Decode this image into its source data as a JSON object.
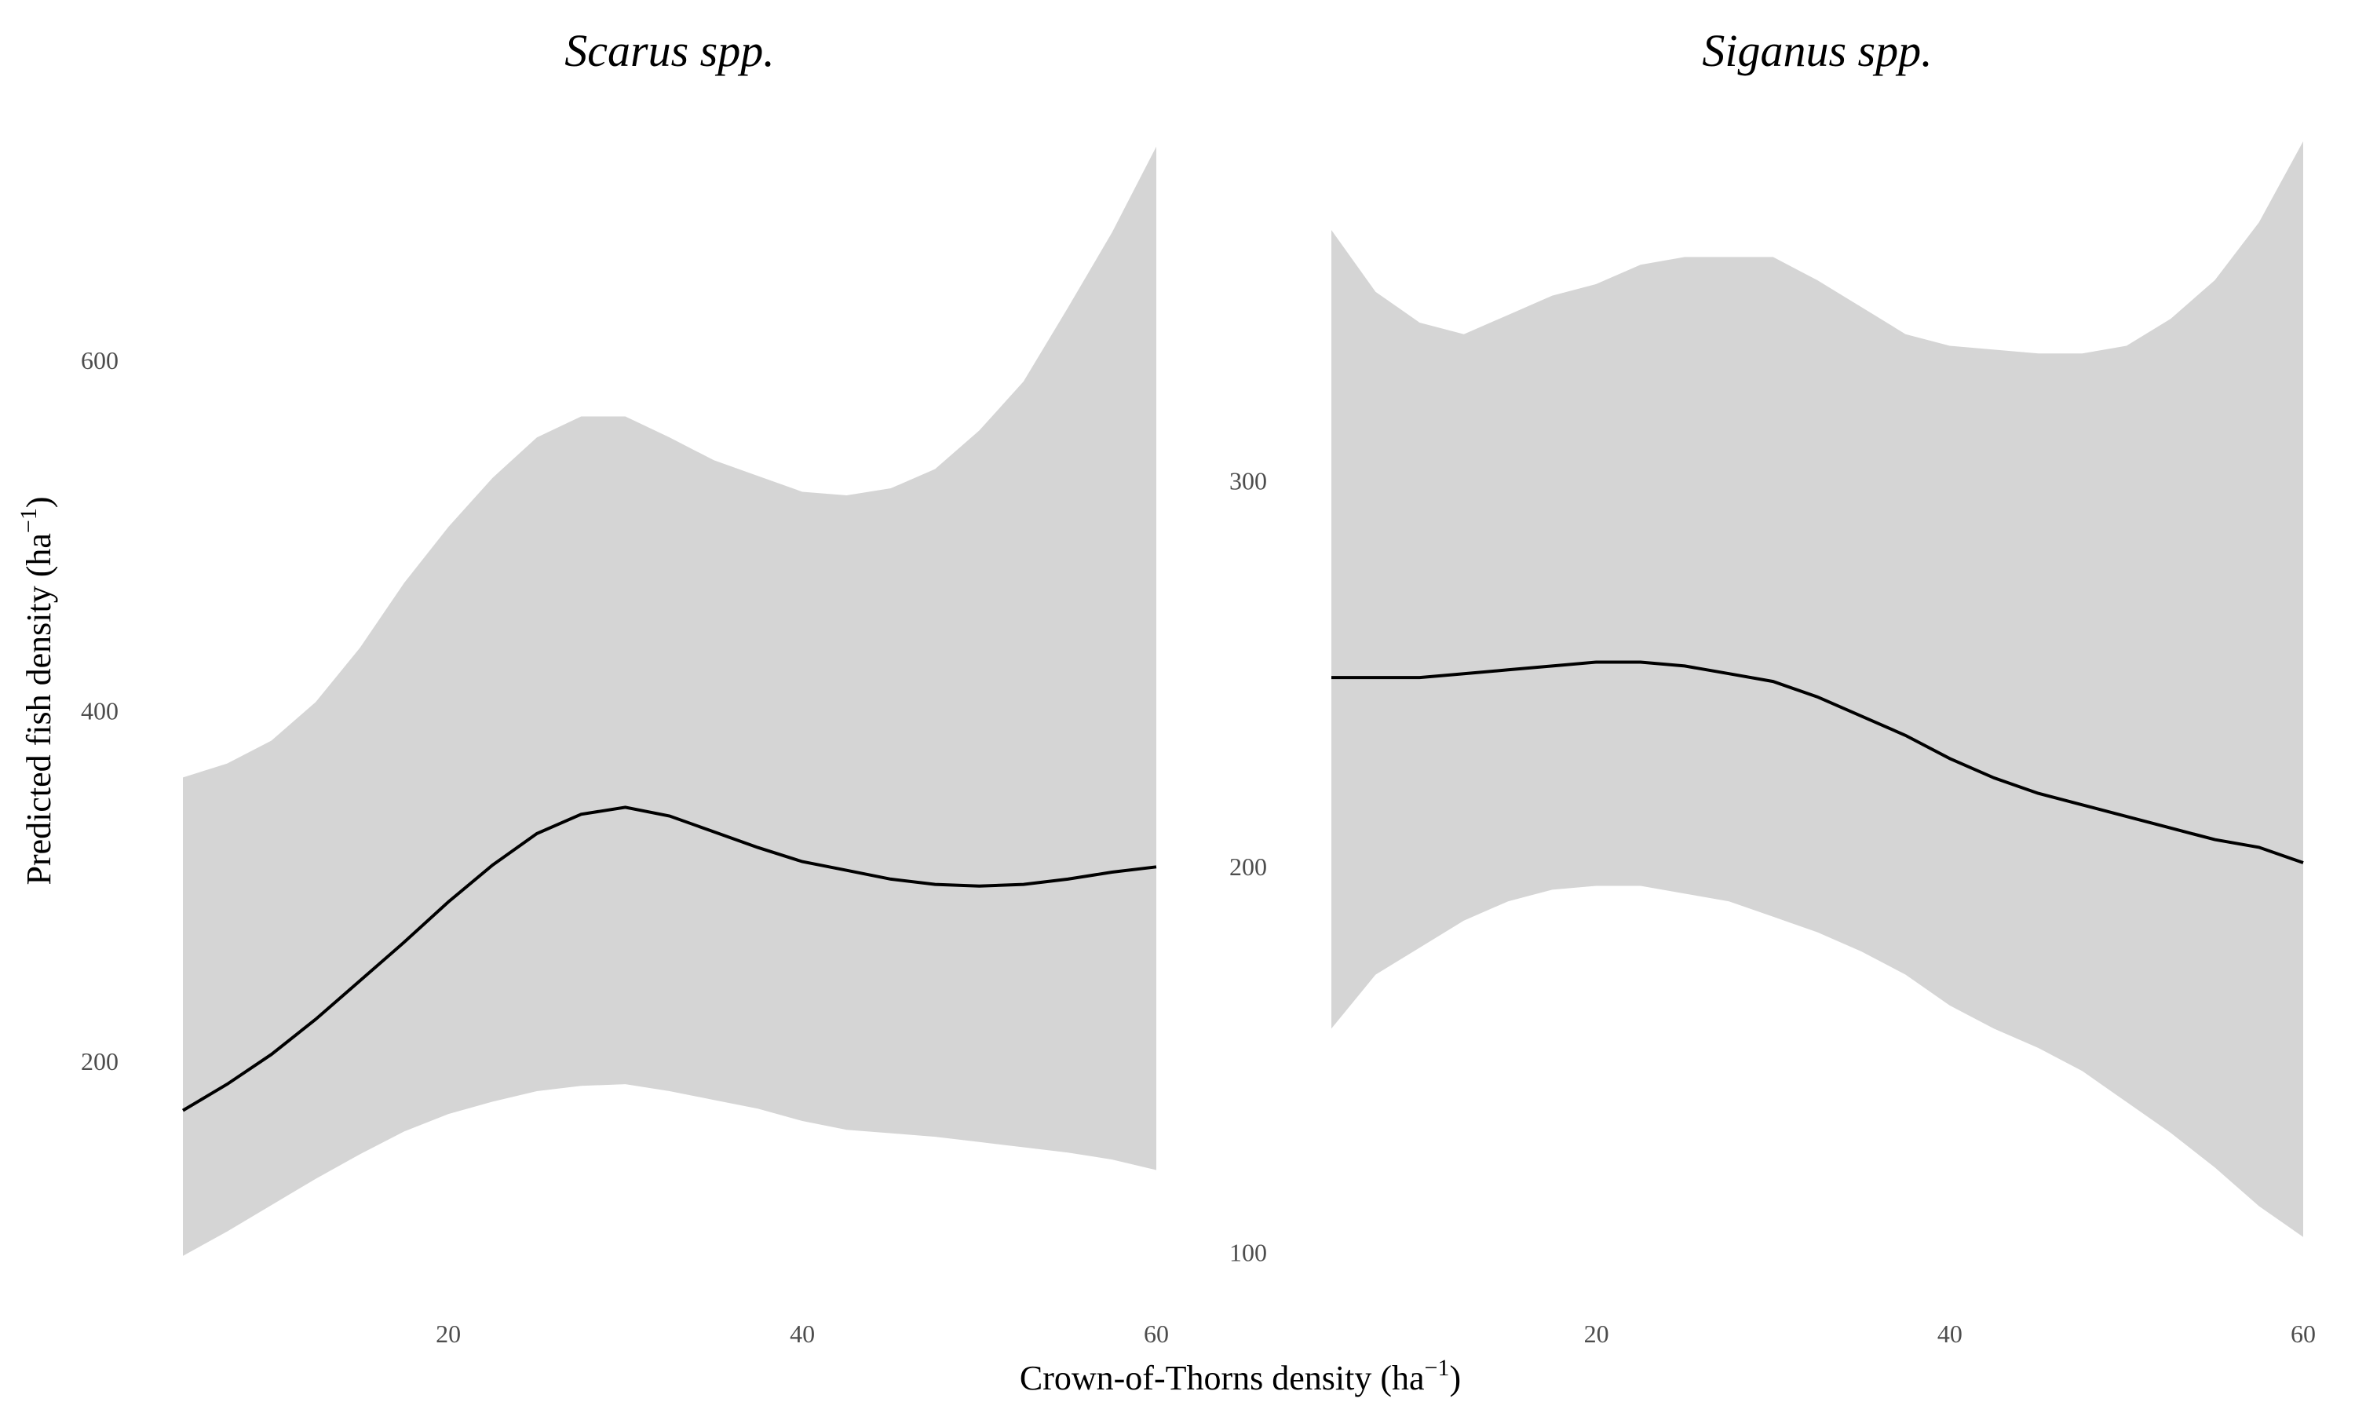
{
  "colors": {
    "band": "#d5d5d5",
    "line": "#000000",
    "tick_text": "#4d4d4d",
    "background": "#ffffff"
  },
  "axes": {
    "xlabel": "Crown-of-Thorns density (ha",
    "xlabel_sup": "−1",
    "xlabel_end": ")",
    "ylabel": "Predicted fish density (ha",
    "ylabel_sup": "−1",
    "ylabel_end": ")"
  },
  "chart_data": [
    {
      "type": "line",
      "title": "Scarus spp.",
      "xlabel": "Crown-of-Thorns density (ha−1)",
      "ylabel": "Predicted fish density (ha−1)",
      "xlim": [
        5,
        60
      ],
      "ylim": [
        80,
        725
      ],
      "x_ticks": [
        20,
        40,
        60
      ],
      "y_ticks": [
        200,
        400,
        600
      ],
      "grid": false,
      "series": [
        {
          "x": [
            5,
            7.5,
            10,
            12.5,
            15,
            17.5,
            20,
            22.5,
            25,
            27.5,
            30,
            32.5,
            35,
            37.5,
            40,
            42.5,
            45,
            47.5,
            50,
            52.5,
            55,
            57.5,
            60
          ],
          "y": [
            172,
            187,
            204,
            224,
            246,
            268,
            291,
            312,
            330,
            341,
            345,
            340,
            331,
            322,
            314,
            309,
            304,
            301,
            300,
            301,
            304,
            308,
            311
          ],
          "lower": [
            89,
            103,
            118,
            133,
            147,
            160,
            170,
            177,
            183,
            186,
            187,
            183,
            178,
            173,
            166,
            161,
            159,
            157,
            154,
            151,
            148,
            144,
            138
          ],
          "upper": [
            362,
            370,
            383,
            405,
            436,
            473,
            505,
            533,
            556,
            568,
            568,
            556,
            543,
            534,
            525,
            523,
            527,
            538,
            560,
            588,
            630,
            673,
            722
          ]
        }
      ]
    },
    {
      "type": "line",
      "title": "Siganus spp.",
      "xlabel": "Crown-of-Thorns density (ha−1)",
      "ylabel": "Predicted fish density (ha−1)",
      "xlim": [
        5,
        60
      ],
      "ylim": [
        95,
        388
      ],
      "x_ticks": [
        20,
        40,
        60
      ],
      "y_ticks": [
        100,
        200,
        300
      ],
      "grid": false,
      "series": [
        {
          "x": [
            5,
            7.5,
            10,
            12.5,
            15,
            17.5,
            20,
            22.5,
            25,
            27.5,
            30,
            32.5,
            35,
            37.5,
            40,
            42.5,
            45,
            47.5,
            50,
            52.5,
            55,
            57.5,
            60
          ],
          "y": [
            249,
            249,
            249,
            250,
            251,
            252,
            253,
            253,
            252,
            250,
            248,
            244,
            239,
            234,
            228,
            223,
            219,
            216,
            213,
            210,
            207,
            205,
            201
          ],
          "lower": [
            158,
            172,
            179,
            186,
            191,
            194,
            195,
            195,
            193,
            191,
            187,
            183,
            178,
            172,
            164,
            158,
            153,
            147,
            139,
            131,
            122,
            112,
            104
          ],
          "upper": [
            365,
            349,
            341,
            338,
            343,
            348,
            351,
            356,
            358,
            358,
            358,
            352,
            345,
            338,
            335,
            334,
            333,
            333,
            335,
            342,
            352,
            367,
            388
          ]
        }
      ]
    }
  ]
}
